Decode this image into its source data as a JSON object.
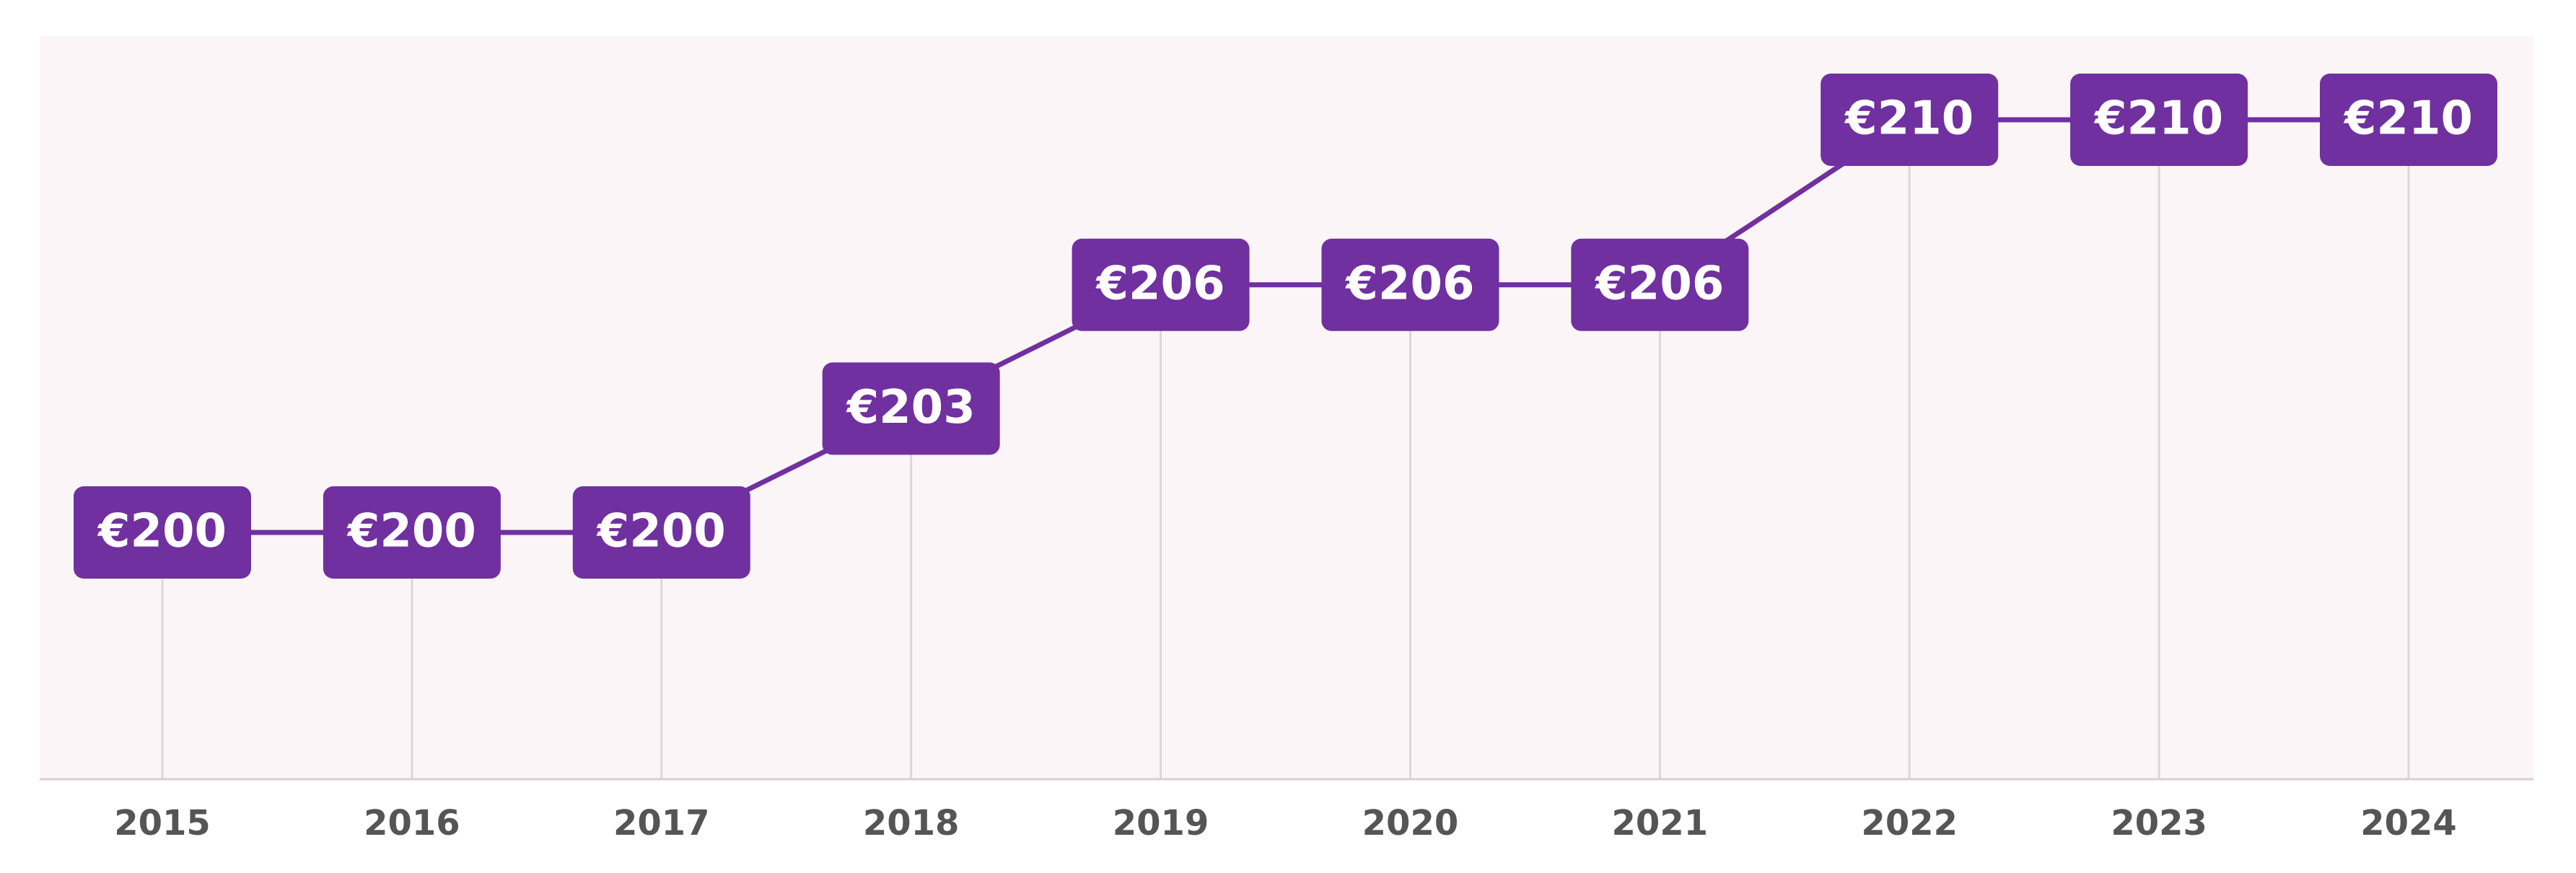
{
  "chart_data": {
    "type": "line",
    "categories": [
      "2015",
      "2016",
      "2017",
      "2018",
      "2019",
      "2020",
      "2021",
      "2022",
      "2023",
      "2024"
    ],
    "values": [
      200,
      200,
      200,
      203,
      206,
      206,
      206,
      210,
      210,
      210
    ],
    "value_labels": [
      "€200",
      "€200",
      "€200",
      "€203",
      "€206",
      "€206",
      "€206",
      "€210",
      "€210",
      "€210"
    ],
    "color": "#7030a0"
  }
}
